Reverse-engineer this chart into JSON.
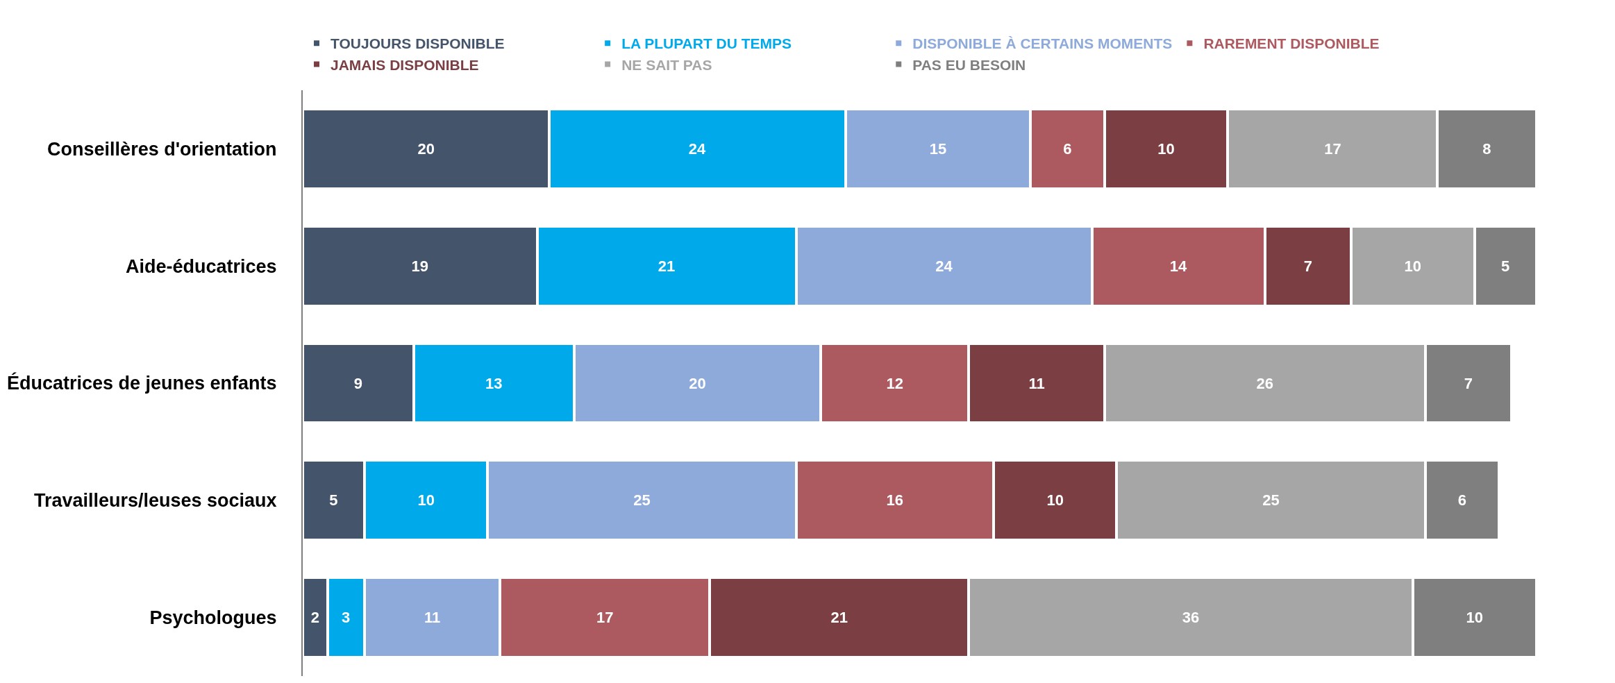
{
  "chart_data": {
    "type": "bar",
    "orientation": "horizontal",
    "stacked": true,
    "data_labels": true,
    "legend": "top",
    "categories": [
      "Conseillères d'orientation",
      "Aide-éducatrices",
      "Éducatrices de jeunes enfants",
      "Travailleurs/leuses sociaux",
      "Psychologues"
    ],
    "series": [
      {
        "name": "TOUJOURS DISPONIBLE",
        "color": "#44546a",
        "values": [
          20,
          19,
          9,
          5,
          2
        ]
      },
      {
        "name": "LA PLUPART DU TEMPS",
        "color": "#00a9ea",
        "values": [
          24,
          21,
          13,
          10,
          3
        ]
      },
      {
        "name": "DISPONIBLE À CERTAINS MOMENTS",
        "color": "#8eaadb",
        "values": [
          15,
          24,
          20,
          25,
          11
        ]
      },
      {
        "name": "RAREMENT DISPONIBLE",
        "color": "#ac5a5f",
        "values": [
          6,
          14,
          12,
          16,
          17
        ]
      },
      {
        "name": "JAMAIS DISPONIBLE",
        "color": "#7b3f43",
        "values": [
          10,
          7,
          11,
          10,
          21
        ]
      },
      {
        "name": "NE SAIT PAS",
        "color": "#a6a6a6",
        "values": [
          17,
          10,
          26,
          25,
          36
        ]
      },
      {
        "name": "PAS EU BESOIN",
        "color": "#7f7f7f",
        "values": [
          8,
          5,
          7,
          6,
          10
        ]
      }
    ]
  }
}
